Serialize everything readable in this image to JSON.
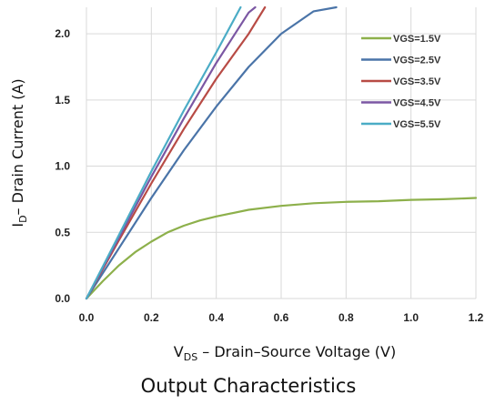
{
  "chart_data": {
    "type": "line",
    "title": "",
    "caption": "Output Characteristics",
    "xlabel": {
      "prefix": "V",
      "sub": "DS",
      "rest": " – Drain–Source Voltage (V)"
    },
    "ylabel": {
      "prefix": "I",
      "sub": "D",
      "rest": "– Drain Current (A)"
    },
    "xlim": [
      0,
      1.2
    ],
    "ylim": [
      0,
      2.2
    ],
    "x_ticks": [
      "0.0",
      "0.2",
      "0.4",
      "0.6",
      "0.8",
      "1.0",
      "1.2"
    ],
    "y_ticks": [
      "0.0",
      "0.5",
      "1.0",
      "1.5",
      "2.0"
    ],
    "grid": true,
    "legend_position": "top-right",
    "series": [
      {
        "name": "VGS=1.5V",
        "color": "#8db04b",
        "x": [
          0,
          0.05,
          0.1,
          0.15,
          0.2,
          0.25,
          0.3,
          0.35,
          0.4,
          0.5,
          0.6,
          0.7,
          0.8,
          0.9,
          1.0,
          1.1,
          1.2
        ],
        "y": [
          0,
          0.13,
          0.25,
          0.35,
          0.43,
          0.5,
          0.55,
          0.59,
          0.62,
          0.67,
          0.7,
          0.72,
          0.73,
          0.735,
          0.745,
          0.75,
          0.76
        ]
      },
      {
        "name": "VGS=2.5V",
        "color": "#4a74a8",
        "x": [
          0,
          0.1,
          0.2,
          0.3,
          0.4,
          0.5,
          0.6,
          0.7,
          0.77
        ],
        "y": [
          0,
          0.38,
          0.76,
          1.12,
          1.45,
          1.75,
          2.0,
          2.17,
          2.2
        ]
      },
      {
        "name": "VGS=3.5V",
        "color": "#b84b45",
        "x": [
          0,
          0.1,
          0.2,
          0.3,
          0.4,
          0.5,
          0.55
        ],
        "y": [
          0,
          0.44,
          0.87,
          1.28,
          1.66,
          2.0,
          2.2
        ]
      },
      {
        "name": "VGS=4.5V",
        "color": "#7b57a3",
        "x": [
          0,
          0.1,
          0.2,
          0.3,
          0.4,
          0.5,
          0.52
        ],
        "y": [
          0,
          0.46,
          0.92,
          1.36,
          1.78,
          2.16,
          2.2
        ]
      },
      {
        "name": "VGS=5.5V",
        "color": "#4bacc6",
        "x": [
          0,
          0.1,
          0.2,
          0.3,
          0.4,
          0.475
        ],
        "y": [
          0,
          0.48,
          0.96,
          1.42,
          1.86,
          2.2
        ]
      }
    ]
  }
}
